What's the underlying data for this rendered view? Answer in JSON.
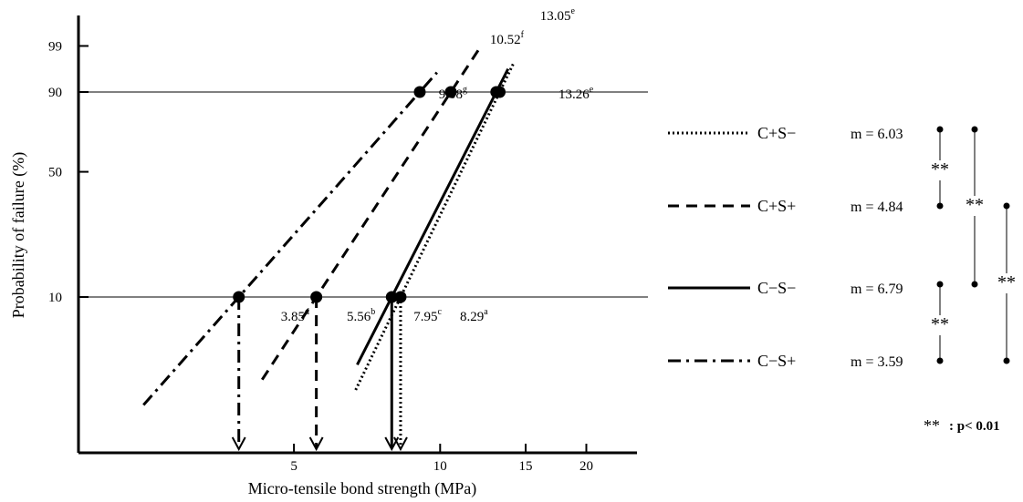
{
  "chart_data": {
    "type": "line",
    "title": "",
    "xlabel": "Micro-tensile bond strength (MPa)",
    "ylabel": "Probability of failure (%)",
    "x_scale": "log",
    "y_scale": "weibull",
    "xlim": [
      1.8,
      27
    ],
    "x_ticks": [
      5,
      10,
      15,
      20
    ],
    "y_ticks": [
      10,
      50,
      90,
      99
    ],
    "reference_lines_y": [
      10,
      90
    ],
    "series": [
      {
        "name": "C+S−",
        "style": "dotted",
        "m": "m = 6.03",
        "line_x": [
          6.7,
          14.2
        ],
        "marker_x": [
          8.29,
          13.26
        ],
        "marker_y": [
          10,
          90
        ],
        "labels": [
          {
            "text": "8.29",
            "sup": "a"
          },
          {
            "text": "13.26",
            "sup": "e"
          }
        ]
      },
      {
        "name": "C+S+",
        "style": "dashed",
        "m": "m = 4.84",
        "line_x": [
          4.3,
          12.0
        ],
        "marker_x": [
          5.56,
          10.52
        ],
        "marker_y": [
          10,
          90
        ],
        "labels": [
          {
            "text": "5.56",
            "sup": "b"
          },
          {
            "text": "10.52",
            "sup": "f"
          }
        ]
      },
      {
        "name": "C−S−",
        "style": "solid",
        "m": "m = 6.79",
        "line_x": [
          6.75,
          13.8
        ],
        "marker_x": [
          7.95,
          13.05
        ],
        "marker_y": [
          10,
          90
        ],
        "labels": [
          {
            "text": "7.95",
            "sup": "c"
          },
          {
            "text": "13.05",
            "sup": "e"
          }
        ]
      },
      {
        "name": "C−S+",
        "style": "dashdot",
        "m": "m = 3.59",
        "line_x": [
          2.45,
          9.85
        ],
        "marker_x": [
          3.85,
          9.08
        ],
        "marker_y": [
          10,
          90
        ],
        "labels": [
          {
            "text": "3.85",
            "sup": "d"
          },
          {
            "text": "9.08",
            "sup": "g"
          }
        ]
      }
    ],
    "significance": {
      "symbol": "**",
      "note": ": p< 0.01",
      "pairs": [
        [
          "C+S−",
          "C+S+"
        ],
        [
          "C+S−",
          "C−S−"
        ],
        [
          "C+S+",
          "C−S+"
        ],
        [
          "C−S−",
          "C−S+"
        ]
      ]
    }
  }
}
